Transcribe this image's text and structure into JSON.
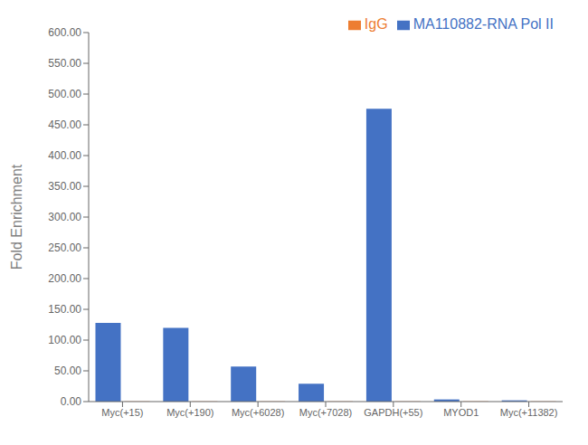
{
  "chart_data": {
    "type": "bar",
    "categories": [
      "Myc(+15)",
      "Myc(+190)",
      "Myc(+6028)",
      "Myc(+7028)",
      "GAPDH(+55)",
      "MYOD1",
      "Myc(+11382)"
    ],
    "series": [
      {
        "name": "MA110882-RNA Pol II",
        "color": "#4472C4",
        "values": [
          128.0,
          120.0,
          57.0,
          29.0,
          476.0,
          3.5,
          2.0
        ]
      },
      {
        "name": "IgG",
        "color": "#ED7D31",
        "values": [
          0.3,
          0.3,
          0.3,
          0.3,
          0.3,
          0.3,
          0.3
        ]
      }
    ],
    "ylabel": "Fold Enrichment",
    "ylim": [
      0,
      600
    ],
    "yticks": [
      {
        "value": 0,
        "label": "0.00"
      },
      {
        "value": 50,
        "label": "50.00"
      },
      {
        "value": 100,
        "label": "100.00"
      },
      {
        "value": 150,
        "label": "150.00"
      },
      {
        "value": 200,
        "label": "200.00"
      },
      {
        "value": 250,
        "label": "250.00"
      },
      {
        "value": 300,
        "label": "300.00"
      },
      {
        "value": 350,
        "label": "350.00"
      },
      {
        "value": 400,
        "label": "400.00"
      },
      {
        "value": 450,
        "label": "450.00"
      },
      {
        "value": 500,
        "label": "500.00"
      },
      {
        "value": 550,
        "label": "550.00"
      },
      {
        "value": 600,
        "label": "600.00"
      }
    ],
    "grid": false,
    "legend": "upper right"
  }
}
